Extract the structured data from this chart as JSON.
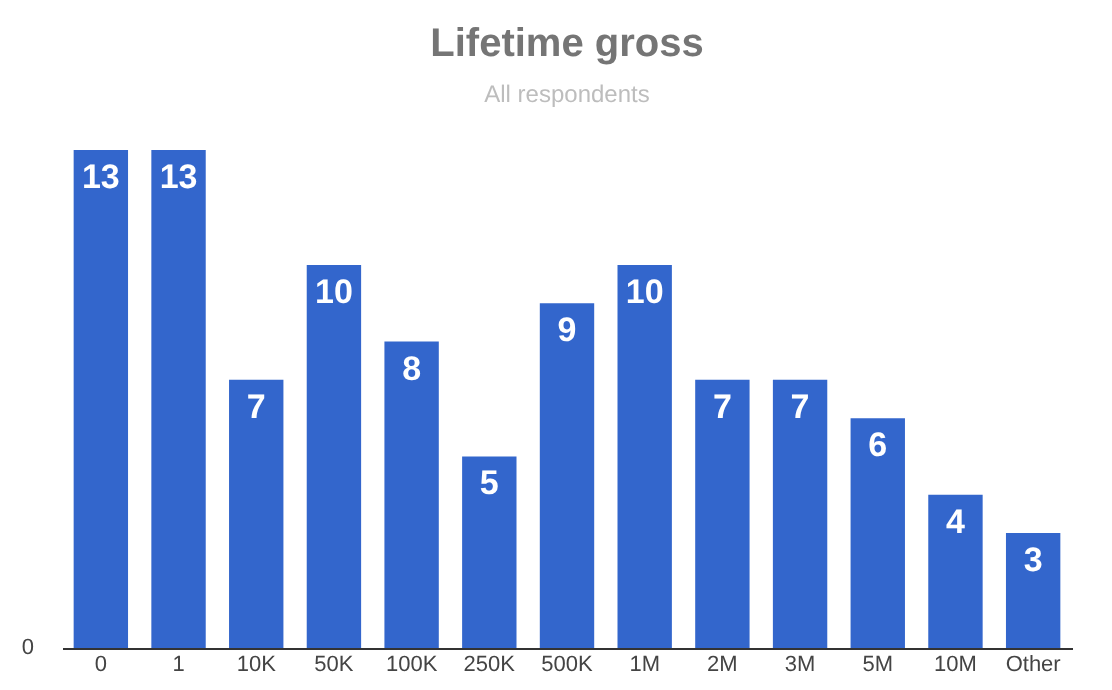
{
  "chart_data": {
    "type": "bar",
    "title": "Lifetime gross",
    "subtitle": "All respondents",
    "categories": [
      "0",
      "1",
      "10K",
      "50K",
      "100K",
      "250K",
      "500K",
      "1M",
      "2M",
      "3M",
      "5M",
      "10M",
      "Other"
    ],
    "values": [
      13,
      13,
      7,
      10,
      8,
      5,
      9,
      10,
      7,
      7,
      6,
      4,
      3
    ],
    "color": "#3366cc",
    "ylim": [
      0,
      13
    ],
    "grid": false,
    "data_labels": true,
    "annotations": [
      "0"
    ]
  }
}
